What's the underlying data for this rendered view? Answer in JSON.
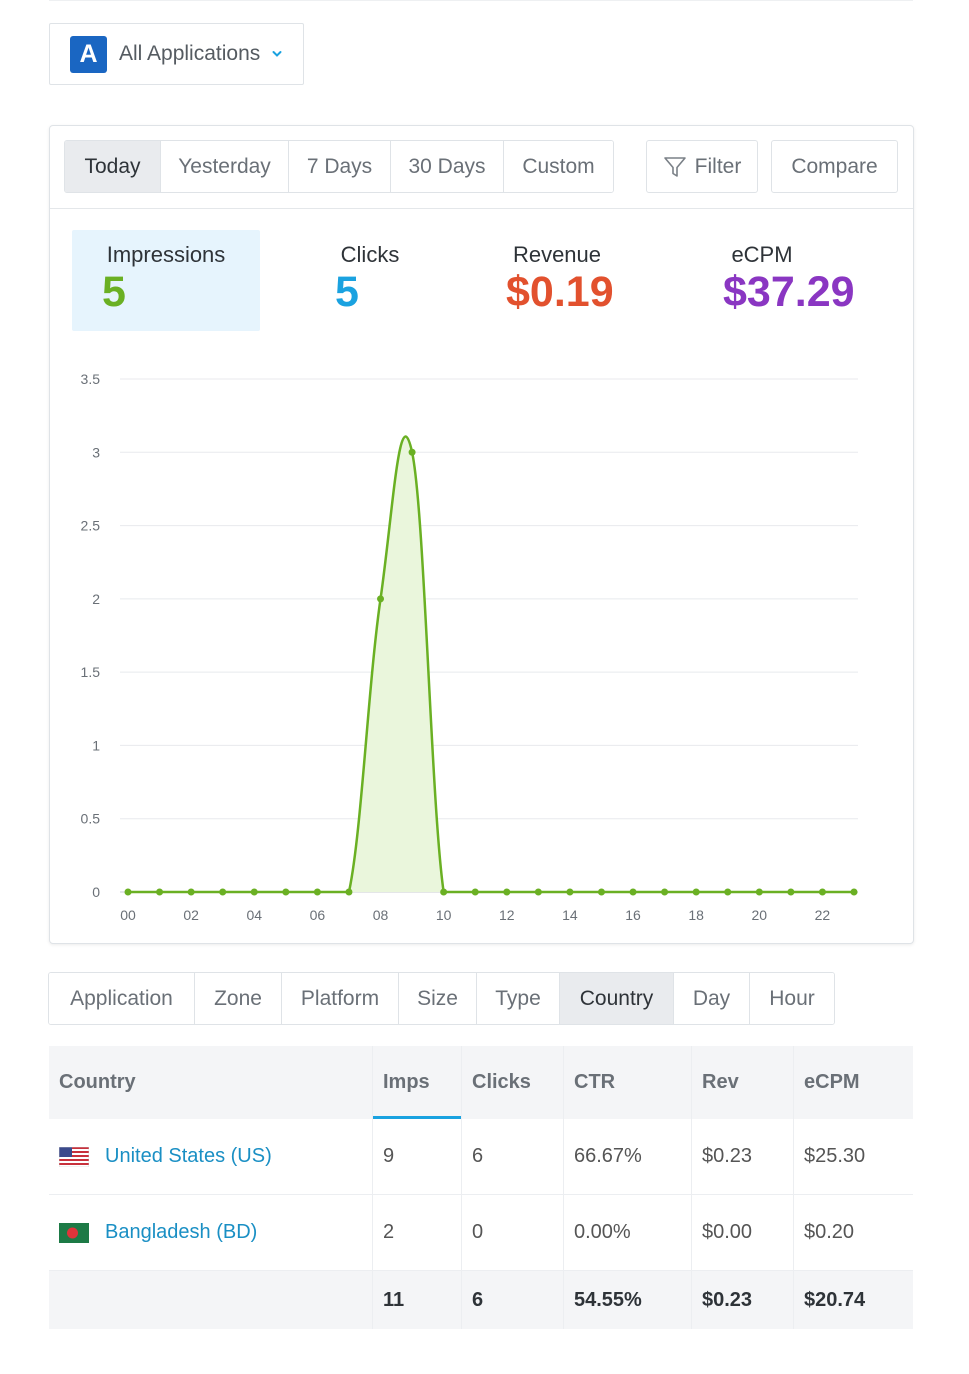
{
  "app_selector": {
    "badge": "A",
    "label": "All Applications"
  },
  "date_ranges": [
    {
      "label": "Today",
      "active": true
    },
    {
      "label": "Yesterday",
      "active": false
    },
    {
      "label": "7 Days",
      "active": false
    },
    {
      "label": "30 Days",
      "active": false
    },
    {
      "label": "Custom",
      "active": false
    }
  ],
  "filter_label": "Filter",
  "compare_label": "Compare",
  "metrics": {
    "impressions": {
      "label": "Impressions",
      "value": "5",
      "color": "#6ab023"
    },
    "clicks": {
      "label": "Clicks",
      "value": "5",
      "color": "#1aa2e0"
    },
    "revenue": {
      "label": "Revenue",
      "value": "$0.19",
      "color": "#e2512e"
    },
    "ecpm": {
      "label": "eCPM",
      "value": "$37.29",
      "color": "#8a36c2"
    }
  },
  "chart_data": {
    "type": "area",
    "series": [
      {
        "values": [
          0,
          0,
          0,
          0,
          0,
          0,
          0,
          0,
          2,
          3,
          0,
          0,
          0,
          0,
          0,
          0,
          0,
          0,
          0,
          0,
          0,
          0,
          0,
          0
        ]
      }
    ],
    "x": [
      "00",
      "01",
      "02",
      "03",
      "04",
      "05",
      "06",
      "07",
      "08",
      "09",
      "10",
      "11",
      "12",
      "13",
      "14",
      "15",
      "16",
      "17",
      "18",
      "19",
      "20",
      "21",
      "22",
      "23"
    ],
    "x_tick_labels": [
      "00",
      "02",
      "04",
      "06",
      "08",
      "10",
      "12",
      "14",
      "16",
      "18",
      "20",
      "22"
    ],
    "y_ticks": [
      "0",
      "0.5",
      "1",
      "1.5",
      "2",
      "2.5",
      "3",
      "3.5"
    ],
    "ylim": [
      0,
      3.5
    ],
    "color": "#6ab023",
    "fill": "#eaf6dc",
    "grid": true
  },
  "breakdown_tabs": [
    {
      "label": "Application",
      "active": false
    },
    {
      "label": "Zone",
      "active": false
    },
    {
      "label": "Platform",
      "active": false
    },
    {
      "label": "Size",
      "active": false
    },
    {
      "label": "Type",
      "active": false
    },
    {
      "label": "Country",
      "active": true
    },
    {
      "label": "Day",
      "active": false
    },
    {
      "label": "Hour",
      "active": false
    }
  ],
  "table": {
    "headers": [
      "Country",
      "Imps",
      "Clicks",
      "CTR",
      "Rev",
      "eCPM"
    ],
    "rows": [
      {
        "flag": "us-flag-icon",
        "country": "United States (US)",
        "imps": "9",
        "clicks": "6",
        "ctr": "66.67%",
        "rev": "$0.23",
        "ecpm": "$25.30"
      },
      {
        "flag": "bd-flag-icon",
        "country": "Bangladesh (BD)",
        "imps": "2",
        "clicks": "0",
        "ctr": "0.00%",
        "rev": "$0.00",
        "ecpm": "$0.20"
      }
    ],
    "totals": {
      "label": "",
      "imps": "11",
      "clicks": "6",
      "ctr": "54.55%",
      "rev": "$0.23",
      "ecpm": "$20.74"
    }
  }
}
